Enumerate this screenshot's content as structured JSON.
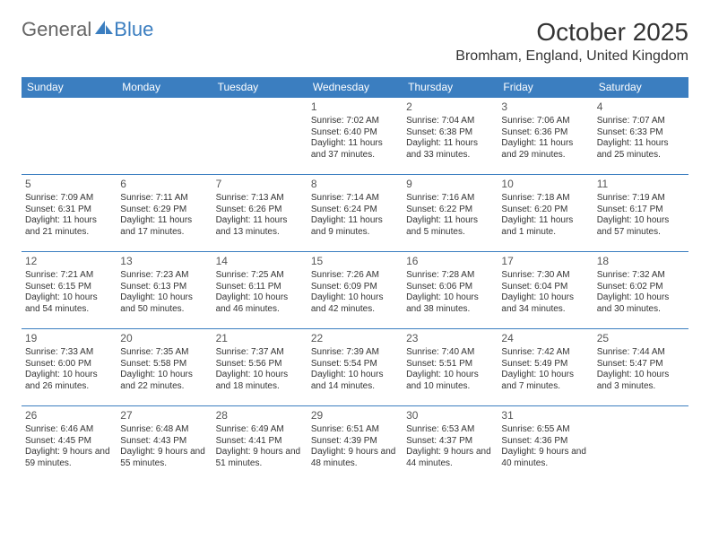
{
  "brand": {
    "part1": "General",
    "part2": "Blue"
  },
  "colors": {
    "accent": "#3b7ec0",
    "text": "#333333",
    "gray": "#666666",
    "bg": "#ffffff"
  },
  "title": "October 2025",
  "location": "Bromham, England, United Kingdom",
  "calendar": {
    "type": "table",
    "day_headers": [
      "Sunday",
      "Monday",
      "Tuesday",
      "Wednesday",
      "Thursday",
      "Friday",
      "Saturday"
    ],
    "header_bg": "#3b7ec0",
    "header_color": "#ffffff",
    "border_color": "#3b7ec0",
    "cell_fontsize": 10,
    "header_fontsize": 12,
    "weeks": [
      [
        {
          "n": "",
          "sr": "",
          "ss": "",
          "dl": ""
        },
        {
          "n": "",
          "sr": "",
          "ss": "",
          "dl": ""
        },
        {
          "n": "",
          "sr": "",
          "ss": "",
          "dl": ""
        },
        {
          "n": "1",
          "sr": "7:02 AM",
          "ss": "6:40 PM",
          "dl": "11 hours and 37 minutes."
        },
        {
          "n": "2",
          "sr": "7:04 AM",
          "ss": "6:38 PM",
          "dl": "11 hours and 33 minutes."
        },
        {
          "n": "3",
          "sr": "7:06 AM",
          "ss": "6:36 PM",
          "dl": "11 hours and 29 minutes."
        },
        {
          "n": "4",
          "sr": "7:07 AM",
          "ss": "6:33 PM",
          "dl": "11 hours and 25 minutes."
        }
      ],
      [
        {
          "n": "5",
          "sr": "7:09 AM",
          "ss": "6:31 PM",
          "dl": "11 hours and 21 minutes."
        },
        {
          "n": "6",
          "sr": "7:11 AM",
          "ss": "6:29 PM",
          "dl": "11 hours and 17 minutes."
        },
        {
          "n": "7",
          "sr": "7:13 AM",
          "ss": "6:26 PM",
          "dl": "11 hours and 13 minutes."
        },
        {
          "n": "8",
          "sr": "7:14 AM",
          "ss": "6:24 PM",
          "dl": "11 hours and 9 minutes."
        },
        {
          "n": "9",
          "sr": "7:16 AM",
          "ss": "6:22 PM",
          "dl": "11 hours and 5 minutes."
        },
        {
          "n": "10",
          "sr": "7:18 AM",
          "ss": "6:20 PM",
          "dl": "11 hours and 1 minute."
        },
        {
          "n": "11",
          "sr": "7:19 AM",
          "ss": "6:17 PM",
          "dl": "10 hours and 57 minutes."
        }
      ],
      [
        {
          "n": "12",
          "sr": "7:21 AM",
          "ss": "6:15 PM",
          "dl": "10 hours and 54 minutes."
        },
        {
          "n": "13",
          "sr": "7:23 AM",
          "ss": "6:13 PM",
          "dl": "10 hours and 50 minutes."
        },
        {
          "n": "14",
          "sr": "7:25 AM",
          "ss": "6:11 PM",
          "dl": "10 hours and 46 minutes."
        },
        {
          "n": "15",
          "sr": "7:26 AM",
          "ss": "6:09 PM",
          "dl": "10 hours and 42 minutes."
        },
        {
          "n": "16",
          "sr": "7:28 AM",
          "ss": "6:06 PM",
          "dl": "10 hours and 38 minutes."
        },
        {
          "n": "17",
          "sr": "7:30 AM",
          "ss": "6:04 PM",
          "dl": "10 hours and 34 minutes."
        },
        {
          "n": "18",
          "sr": "7:32 AM",
          "ss": "6:02 PM",
          "dl": "10 hours and 30 minutes."
        }
      ],
      [
        {
          "n": "19",
          "sr": "7:33 AM",
          "ss": "6:00 PM",
          "dl": "10 hours and 26 minutes."
        },
        {
          "n": "20",
          "sr": "7:35 AM",
          "ss": "5:58 PM",
          "dl": "10 hours and 22 minutes."
        },
        {
          "n": "21",
          "sr": "7:37 AM",
          "ss": "5:56 PM",
          "dl": "10 hours and 18 minutes."
        },
        {
          "n": "22",
          "sr": "7:39 AM",
          "ss": "5:54 PM",
          "dl": "10 hours and 14 minutes."
        },
        {
          "n": "23",
          "sr": "7:40 AM",
          "ss": "5:51 PM",
          "dl": "10 hours and 10 minutes."
        },
        {
          "n": "24",
          "sr": "7:42 AM",
          "ss": "5:49 PM",
          "dl": "10 hours and 7 minutes."
        },
        {
          "n": "25",
          "sr": "7:44 AM",
          "ss": "5:47 PM",
          "dl": "10 hours and 3 minutes."
        }
      ],
      [
        {
          "n": "26",
          "sr": "6:46 AM",
          "ss": "4:45 PM",
          "dl": "9 hours and 59 minutes."
        },
        {
          "n": "27",
          "sr": "6:48 AM",
          "ss": "4:43 PM",
          "dl": "9 hours and 55 minutes."
        },
        {
          "n": "28",
          "sr": "6:49 AM",
          "ss": "4:41 PM",
          "dl": "9 hours and 51 minutes."
        },
        {
          "n": "29",
          "sr": "6:51 AM",
          "ss": "4:39 PM",
          "dl": "9 hours and 48 minutes."
        },
        {
          "n": "30",
          "sr": "6:53 AM",
          "ss": "4:37 PM",
          "dl": "9 hours and 44 minutes."
        },
        {
          "n": "31",
          "sr": "6:55 AM",
          "ss": "4:36 PM",
          "dl": "9 hours and 40 minutes."
        },
        {
          "n": "",
          "sr": "",
          "ss": "",
          "dl": ""
        }
      ]
    ],
    "labels": {
      "sunrise": "Sunrise:",
      "sunset": "Sunset:",
      "daylight": "Daylight:"
    }
  }
}
